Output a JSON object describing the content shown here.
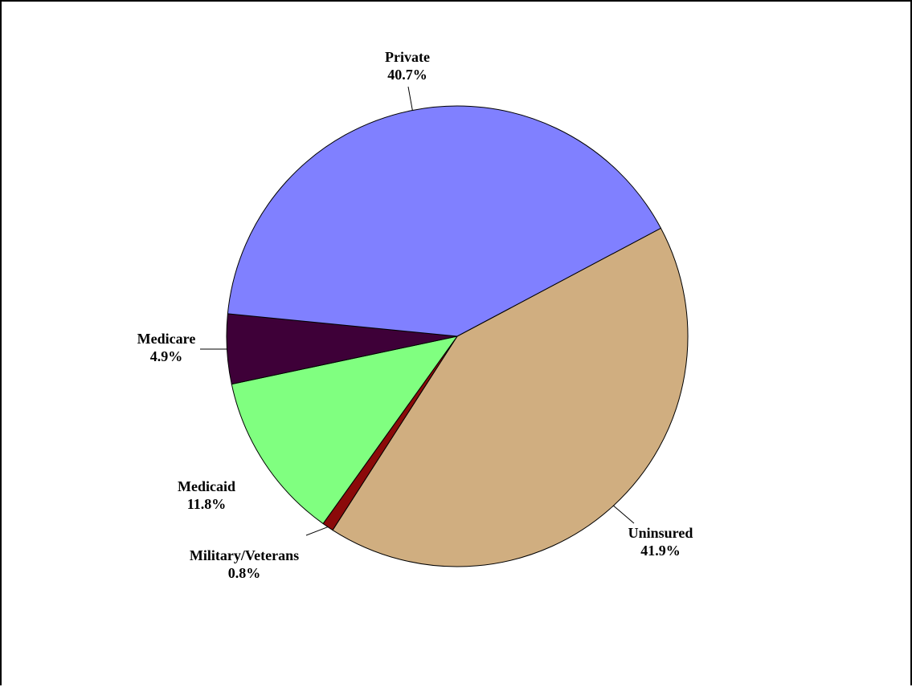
{
  "chart_data": {
    "type": "pie",
    "title": "",
    "start_angle_deg": -28,
    "direction": "clockwise",
    "slices": [
      {
        "label": "Uninsured",
        "value": 41.9,
        "value_label": "41.9%",
        "color": "#D0AE80"
      },
      {
        "label": "Military/Veterans",
        "value": 0.8,
        "value_label": "0.8%",
        "color": "#8B0A0A"
      },
      {
        "label": "Medicaid",
        "value": 11.8,
        "value_label": "11.8%",
        "color": "#80FF80"
      },
      {
        "label": "Medicare",
        "value": 4.9,
        "value_label": "4.9%",
        "color": "#3E0038"
      },
      {
        "label": "Private",
        "value": 40.7,
        "value_label": "40.7%",
        "color": "#8080FF"
      }
    ]
  }
}
